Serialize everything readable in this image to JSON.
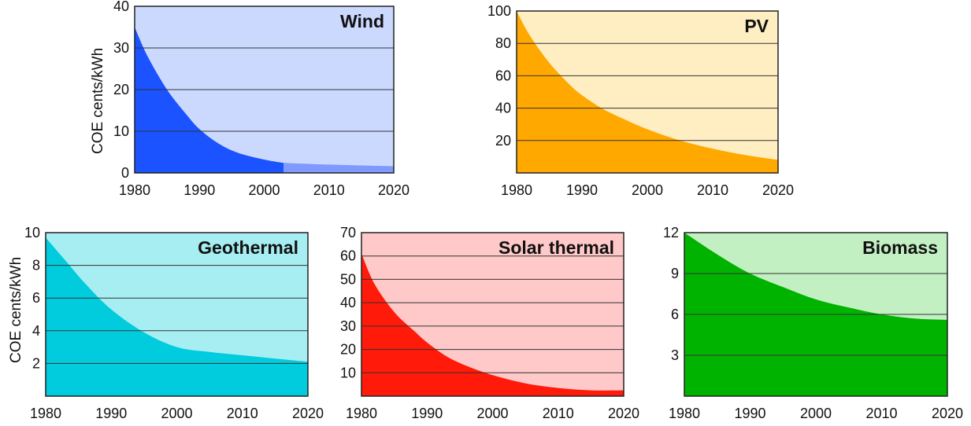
{
  "chart_data": [
    {
      "type": "area",
      "title": "Wind",
      "ylabel": "COE cents/kWh",
      "xlim": [
        1980,
        2020
      ],
      "ylim": [
        0,
        40
      ],
      "x_ticks": [
        1980,
        1990,
        2000,
        2010,
        2020
      ],
      "y_ticks": [
        0,
        10,
        20,
        30,
        40
      ],
      "grid": true,
      "historical_end": 2003,
      "series": [
        {
          "x": [
            1980,
            1982,
            1985,
            1988,
            1990,
            1993,
            1996,
            2000,
            2003,
            2010,
            2015,
            2020
          ],
          "values": [
            35,
            28,
            20,
            14,
            10.5,
            7,
            4.8,
            3.2,
            2.4,
            2.0,
            1.8,
            1.6
          ]
        }
      ],
      "colors": {
        "background": "#ccd9ff",
        "historical": "#1a53ff",
        "projected": "#8099ff"
      }
    },
    {
      "type": "area",
      "title": "PV",
      "ylabel": "",
      "xlim": [
        1980,
        2020
      ],
      "ylim": [
        0,
        100
      ],
      "x_ticks": [
        1980,
        1990,
        2000,
        2010,
        2020
      ],
      "y_ticks": [
        20,
        40,
        60,
        80,
        100
      ],
      "grid": true,
      "series": [
        {
          "x": [
            1980,
            1982,
            1985,
            1988,
            1990,
            1993,
            1996,
            2000,
            2005,
            2010,
            2015,
            2020
          ],
          "values": [
            100,
            85,
            68,
            55,
            48,
            40,
            34,
            27,
            20,
            15,
            11,
            8
          ]
        }
      ],
      "colors": {
        "background": "#ffeec2",
        "fill": "#ffa800"
      }
    },
    {
      "type": "area",
      "title": "Geothermal",
      "ylabel": "COE cents/kWh",
      "xlim": [
        1980,
        2020
      ],
      "ylim": [
        0,
        10
      ],
      "x_ticks": [
        1980,
        1990,
        2000,
        2010,
        2020
      ],
      "y_ticks": [
        2,
        4,
        6,
        8,
        10
      ],
      "grid": true,
      "series": [
        {
          "x": [
            1980,
            1983,
            1986,
            1990,
            1995,
            2000,
            2005,
            2010,
            2015,
            2020
          ],
          "values": [
            9.7,
            8.3,
            6.9,
            5.3,
            3.9,
            3.0,
            2.7,
            2.5,
            2.3,
            2.1
          ]
        }
      ],
      "colors": {
        "background": "#a6eef2",
        "fill": "#00ccdd"
      }
    },
    {
      "type": "area",
      "title": "Solar thermal",
      "ylabel": "",
      "xlim": [
        1980,
        2020
      ],
      "ylim": [
        0,
        70
      ],
      "x_ticks": [
        1980,
        1990,
        2000,
        2010,
        2020
      ],
      "y_ticks": [
        10,
        20,
        30,
        40,
        50,
        60,
        70
      ],
      "grid": true,
      "series": [
        {
          "x": [
            1980,
            1982,
            1985,
            1988,
            1990,
            1993,
            1996,
            2000,
            2005,
            2010,
            2015,
            2020
          ],
          "values": [
            61,
            48,
            36,
            28,
            23,
            17,
            13,
            9,
            5.5,
            3.5,
            2.5,
            2.5
          ]
        }
      ],
      "colors": {
        "background": "#ffc9c9",
        "fill": "#ff1a0a"
      }
    },
    {
      "type": "area",
      "title": "Biomass",
      "ylabel": "",
      "xlim": [
        1980,
        2020
      ],
      "ylim": [
        0,
        12
      ],
      "x_ticks": [
        1980,
        1990,
        2000,
        2010,
        2020
      ],
      "y_ticks": [
        3,
        6,
        9,
        12
      ],
      "grid": true,
      "series": [
        {
          "x": [
            1980,
            1985,
            1990,
            1995,
            2000,
            2005,
            2010,
            2015,
            2020
          ],
          "values": [
            12.0,
            10.4,
            9.0,
            8.0,
            7.1,
            6.5,
            6.0,
            5.7,
            5.6
          ]
        }
      ],
      "colors": {
        "background": "#c2f0c2",
        "fill": "#00b300"
      }
    }
  ]
}
